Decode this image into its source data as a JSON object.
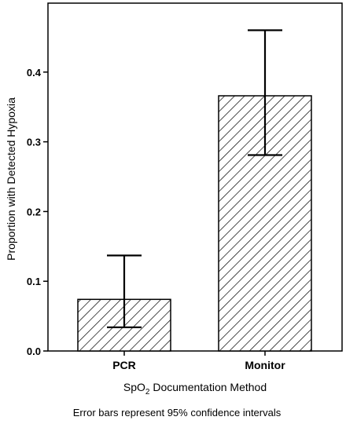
{
  "chart_data": {
    "type": "bar",
    "categories": [
      "PCR",
      "Monitor"
    ],
    "values": [
      0.074,
      0.366
    ],
    "error_low": [
      0.034,
      0.281
    ],
    "error_high": [
      0.137,
      0.46
    ],
    "ylim": [
      0,
      0.5
    ],
    "yticks": [
      0.0,
      0.1,
      0.2,
      0.3,
      0.4
    ],
    "ytick_labels": [
      "0.0",
      "0.1",
      "0.2",
      "0.3",
      "0.4"
    ],
    "ylabel": "Proportion with Detected Hypoxia",
    "xlabel": {
      "prefix": "SpO",
      "subscript": "2",
      "suffix": " Documentation Method"
    },
    "annotation": "Error bars represent 95% confidence intervals",
    "bar_fill": "hatched",
    "grid": false
  }
}
